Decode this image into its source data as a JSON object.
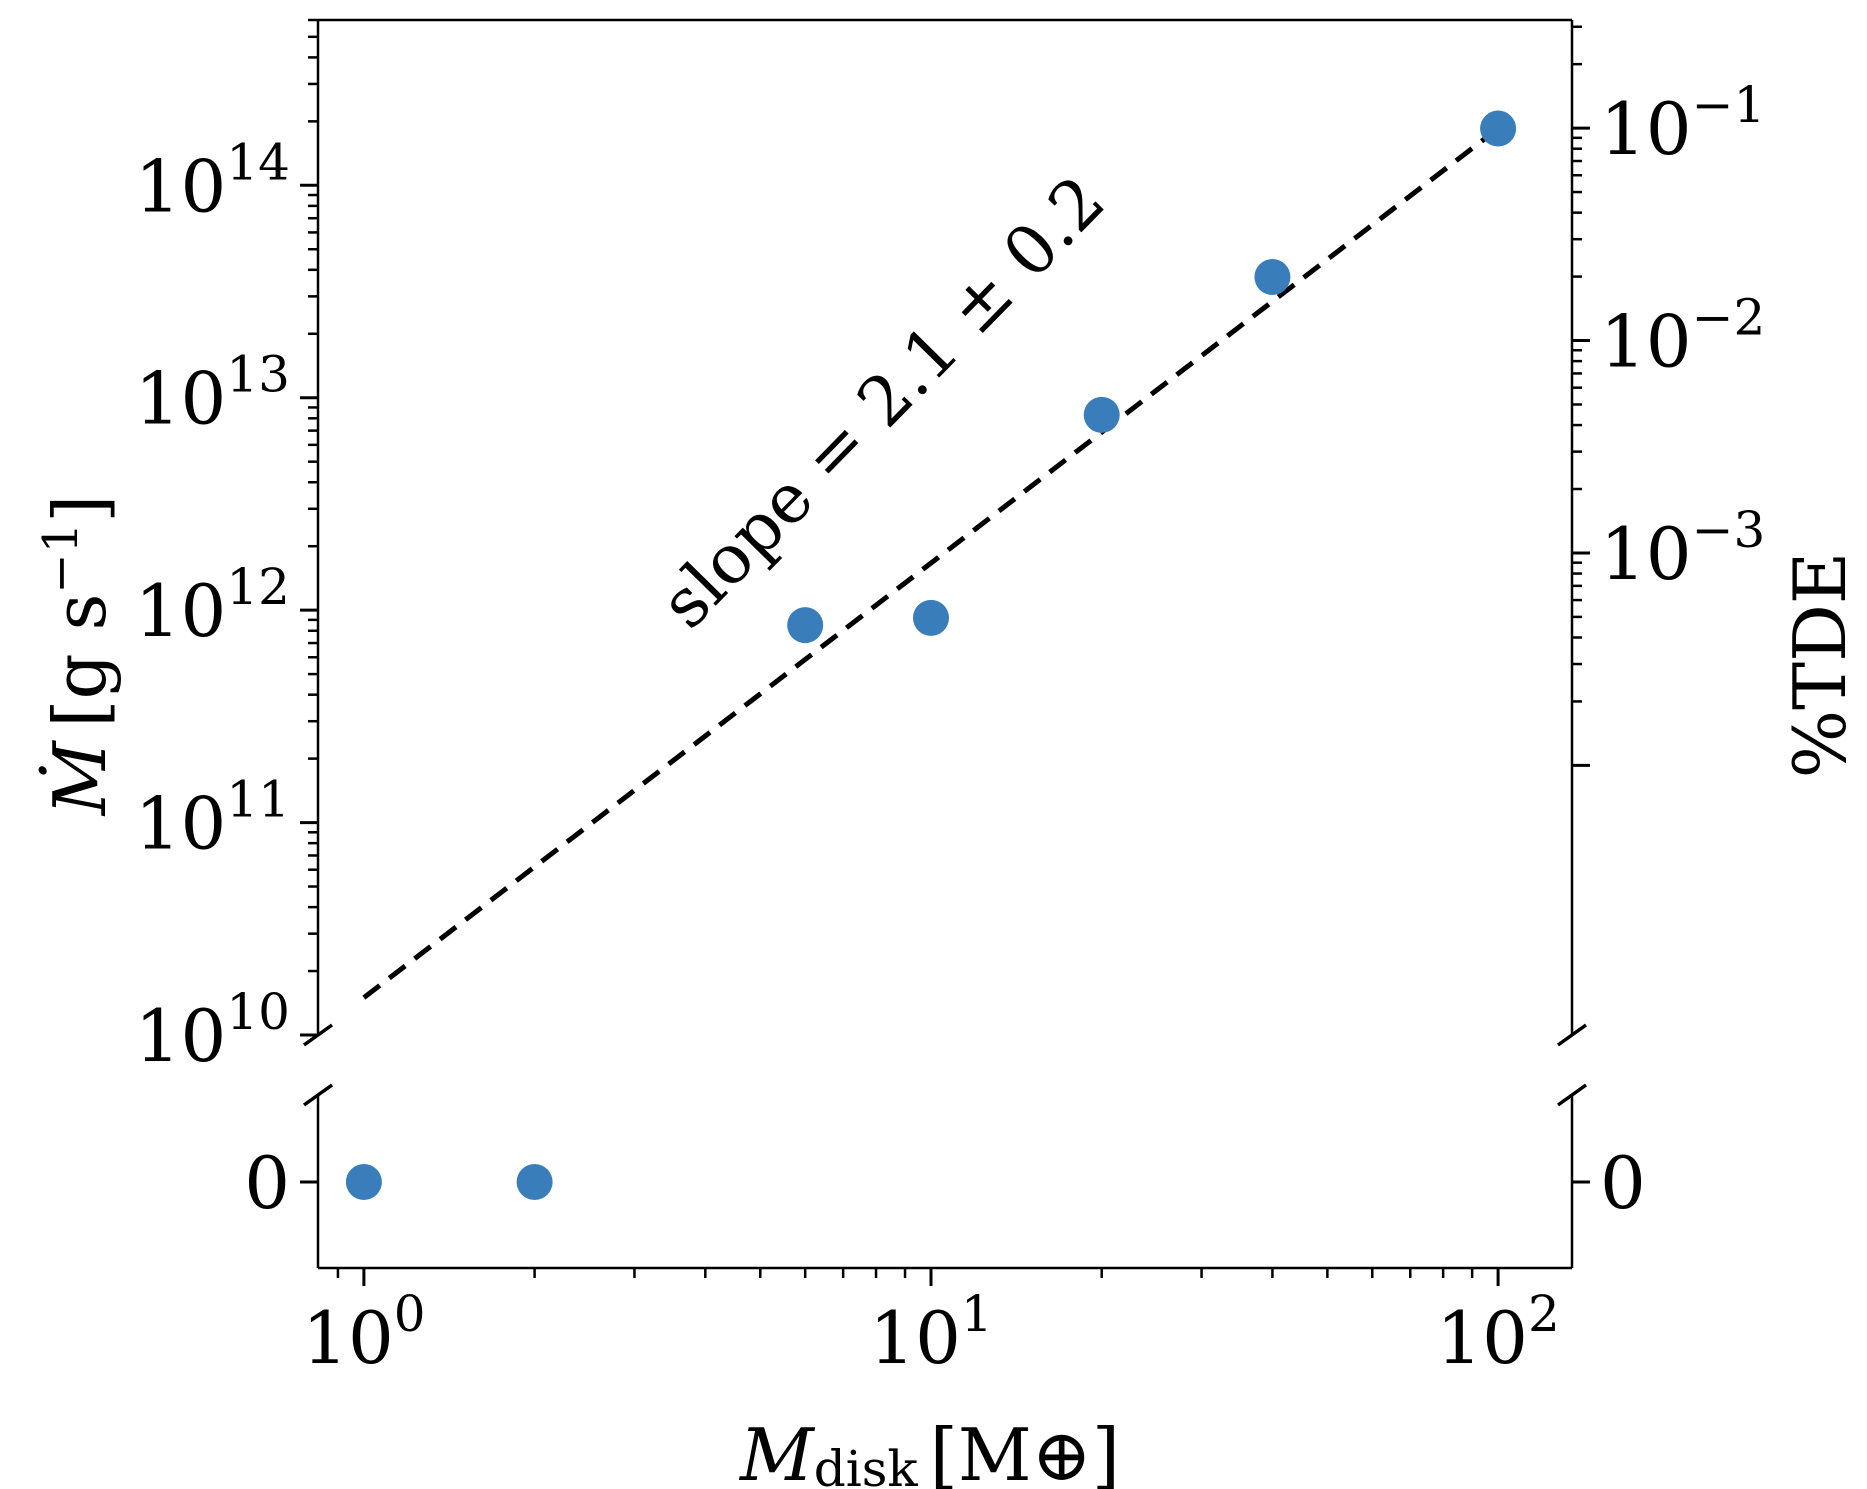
{
  "chart_data": {
    "type": "scatter",
    "x_scale": "log",
    "y_scale": "log (broken axis; lower panel shows zero)",
    "xlim": [
      0.83,
      135
    ],
    "ylim_upper": [
      10000000000.0,
      600000000000000.0
    ],
    "ylim_lower_label": "0",
    "right_axis": {
      "label": "%TDE",
      "scale": "log",
      "ticks": [
        {
          "value": 0.001,
          "base": "10",
          "exp": "−3"
        },
        {
          "value": 0.01,
          "base": "10",
          "exp": "−2"
        },
        {
          "value": 0.1,
          "base": "10",
          "exp": "−1"
        }
      ],
      "zero_label": "0"
    },
    "x_ticks": [
      {
        "value": 1,
        "base": "10",
        "exp": "0"
      },
      {
        "value": 10,
        "base": "10",
        "exp": "1"
      },
      {
        "value": 100,
        "base": "10",
        "exp": "2"
      }
    ],
    "y_ticks": [
      {
        "value": 10000000000.0,
        "base": "10",
        "exp": "10"
      },
      {
        "value": 100000000000.0,
        "base": "10",
        "exp": "11"
      },
      {
        "value": 1000000000000.0,
        "base": "10",
        "exp": "12"
      },
      {
        "value": 10000000000000.0,
        "base": "10",
        "exp": "13"
      },
      {
        "value": 100000000000000.0,
        "base": "10",
        "exp": "14"
      }
    ],
    "y_zero_label": "0",
    "xlabel": {
      "symbol": "M",
      "subscript": "disk",
      "unit": "[M⊕]"
    },
    "ylabel": {
      "symbol": "Ṁ",
      "unit": "[g s",
      "unit_exp": "−1",
      "close": "]"
    },
    "points": [
      {
        "x": 1,
        "y": 0
      },
      {
        "x": 2,
        "y": 0
      },
      {
        "x": 6,
        "y": 850000000000.0
      },
      {
        "x": 10,
        "y": 920000000000.0
      },
      {
        "x": 20,
        "y": 8300000000000.0
      },
      {
        "x": 40,
        "y": 37000000000000.0
      },
      {
        "x": 100,
        "y": 185000000000000.0
      }
    ],
    "fit_line": {
      "style": "dashed",
      "x_start": 1,
      "x_end": 100,
      "y_start": 15000000000.0,
      "y_end": 185000000000000.0
    },
    "annotation": "slope = 2.1 ± 0.2",
    "point_color": "#3a7dbb",
    "line_color": "#000000"
  }
}
